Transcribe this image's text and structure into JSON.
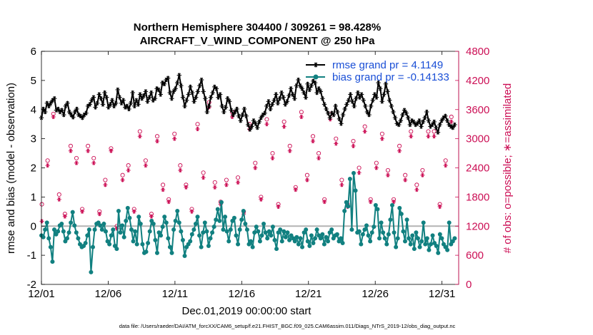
{
  "chart_data": {
    "type": "line",
    "title_line1": "Northern Hemisphere 304400 / 309261 = 98.428%",
    "title_line2": "AIRCRAFT_V_WIND_COMPONENT @ 250 hPa",
    "xlabel": "Dec.01,2019 00:00:00 start",
    "ylabel_left": "rmse and bias (model - observation)",
    "ylabel_right": "# of obs: o=possible; ∗=assimilated",
    "footnote": "data file: /Users/raeder/DAI/ATM_forcXX/CAM6_setup/f.e21.FHIST_BGC.f09_025.CAM6assim.011/Diags_NTrS_2019-12/obs_diag_output.nc",
    "xlim": [
      1,
      32.25
    ],
    "x_ticks": [
      1,
      6,
      11,
      16,
      21,
      26,
      31
    ],
    "x_tick_labels": [
      "12/01",
      "12/06",
      "12/11",
      "12/16",
      "12/21",
      "12/26",
      "12/31"
    ],
    "ylim_left": [
      -2,
      6
    ],
    "y_ticks_left": [
      "-2",
      "-1",
      "0",
      "1",
      "2",
      "3",
      "4",
      "5",
      "6"
    ],
    "ylim_right": [
      0,
      4800
    ],
    "y_ticks_right": [
      "0",
      "600",
      "1200",
      "1800",
      "2400",
      "3000",
      "3600",
      "4200",
      "4800"
    ],
    "zero_line": 0,
    "colors": {
      "rmse": "#000000",
      "bias": "#118080",
      "obs": "#cc0f55",
      "zero_line": "#b4b4b4",
      "legend_text": "#1a4fd6"
    },
    "series": [
      {
        "name": "rmse",
        "legend": "rmse grand pr = 4.1149",
        "values": [
          3.72,
          4.02,
          3.92,
          4.22,
          4.12,
          4.22,
          4.32,
          4.38,
          3.98,
          4.02,
          3.92,
          3.98,
          3.82,
          4.12,
          4.22,
          3.92,
          3.82,
          3.74,
          3.92,
          4.02,
          3.82,
          3.78,
          3.72,
          3.82,
          3.88,
          4.12,
          4.18,
          4.32,
          4.42,
          4.08,
          4.22,
          4.52,
          4.38,
          4.18,
          4.58,
          4.42,
          4.08,
          4.18,
          4.32,
          4.12,
          4.22,
          4.68,
          4.42,
          4.22,
          4.32,
          4.08,
          4.12,
          4.02,
          4.22,
          4.58,
          4.12,
          4.32,
          4.18,
          4.52,
          4.38,
          4.48,
          4.62,
          4.28,
          4.42,
          4.58,
          4.32,
          4.38,
          4.72,
          4.68,
          4.52,
          4.92,
          4.88,
          5.02,
          5.08,
          4.58,
          4.38,
          4.62,
          4.72,
          4.92,
          5.18,
          4.82,
          4.42,
          4.12,
          4.32,
          4.52,
          4.78,
          4.58,
          4.28,
          4.42,
          4.62,
          4.82,
          5.02,
          4.62,
          4.38,
          3.92,
          4.12,
          4.42,
          4.58,
          4.78,
          4.72,
          4.42,
          4.52,
          4.12,
          3.92,
          4.08,
          4.38,
          4.28,
          3.98,
          3.82,
          3.92,
          4.02,
          3.78,
          3.62,
          3.82,
          4.02,
          3.78,
          3.48,
          3.32,
          3.42,
          3.62,
          3.52,
          3.38,
          3.58,
          3.72,
          3.82,
          3.88,
          4.12,
          4.28,
          4.02,
          4.18,
          4.32,
          4.52,
          4.22,
          4.38,
          4.58,
          4.42,
          4.18,
          4.28,
          4.48,
          4.72,
          4.52,
          4.38,
          4.82,
          5.02,
          4.82,
          4.72,
          4.58,
          4.42,
          4.88,
          4.68,
          4.82,
          4.98,
          4.92,
          4.58,
          4.72,
          4.62,
          4.38,
          4.18,
          4.02,
          3.88,
          3.72,
          3.88,
          3.82,
          4.12,
          3.92,
          3.68,
          3.52,
          3.82,
          4.02,
          4.18,
          4.32,
          4.52,
          4.28,
          4.12,
          4.38,
          4.58,
          4.42,
          4.52,
          4.32,
          4.12,
          3.92,
          3.82,
          4.12,
          4.32,
          4.52,
          4.42,
          4.92,
          4.72,
          4.28,
          4.52,
          4.88,
          4.62,
          4.32,
          4.12,
          3.92,
          3.72,
          3.52,
          3.48,
          3.62,
          3.82,
          3.98,
          3.88,
          3.72,
          3.48,
          3.62,
          3.58,
          3.48,
          3.52,
          3.62,
          3.42,
          3.58,
          3.72,
          3.92,
          3.62,
          3.42,
          3.48,
          3.58,
          3.38,
          3.22,
          3.48,
          3.62,
          3.72,
          3.78,
          3.62,
          3.48,
          3.42,
          3.38,
          3.48
        ]
      },
      {
        "name": "bias",
        "legend": "bias grand pr = -0.14133",
        "values": [
          -0.32,
          -0.38,
          -0.12,
          0.12,
          -0.42,
          -0.72,
          -1.22,
          -0.12,
          -0.28,
          -0.18,
          0.02,
          0.08,
          -0.18,
          -0.52,
          -0.42,
          -0.22,
          0.12,
          0.48,
          0.02,
          -0.22,
          -0.42,
          -0.62,
          -0.72,
          -0.68,
          -0.58,
          -0.32,
          -0.12,
          -1.58,
          -0.72,
          -0.12,
          0.08,
          0.12,
          0.02,
          -0.12,
          0.08,
          -0.18,
          -0.52,
          -0.62,
          -0.32,
          -0.12,
          -0.68,
          -0.78,
          0.52,
          -0.22,
          0.02,
          -0.38,
          0.18,
          0.62,
          0.28,
          -0.12,
          -0.52,
          -0.18,
          -0.62,
          0.32,
          0.08,
          -0.62,
          -0.92,
          -0.88,
          -0.58,
          -0.18,
          0.18,
          0.08,
          -0.48,
          -0.92,
          -0.22,
          -0.32,
          -0.02,
          0.32,
          0.12,
          -0.42,
          -0.72,
          -0.92,
          -0.12,
          0.18,
          0.52,
          0.12,
          -0.18,
          -0.48,
          -1.02,
          -0.72,
          -0.62,
          -0.52,
          -0.28,
          -0.12,
          0.08,
          0.32,
          -0.32,
          -0.72,
          -0.22,
          0.12,
          -0.18,
          -0.68,
          -0.42,
          -0.22,
          -0.02,
          0.22,
          0.58,
          0.18,
          0.82,
          -0.12,
          0.32,
          -0.18,
          -0.52,
          -0.12,
          0.18,
          0.28,
          -0.32,
          -0.62,
          -0.12,
          0.22,
          0.52,
          0.08,
          -0.12,
          -0.62,
          -0.52,
          -0.72,
          -0.22,
          -0.02,
          -0.18,
          -0.52,
          -0.32,
          0.08,
          -0.22,
          -0.42,
          -0.18,
          -0.32,
          -0.02,
          -0.48,
          -0.78,
          -0.22,
          -0.12,
          -0.52,
          -0.18,
          -0.38,
          -0.22,
          -0.48,
          -0.32,
          -0.42,
          -0.52,
          -0.38,
          -0.62,
          -0.42,
          -0.72,
          -0.22,
          -0.12,
          -0.52,
          -0.68,
          -0.32,
          -0.58,
          -0.42,
          -0.12,
          -0.32,
          -0.42,
          -0.28,
          -0.62,
          -0.38,
          -0.52,
          -0.22,
          -0.12,
          -0.42,
          -0.32,
          -0.28,
          -0.52,
          -0.42,
          -0.58,
          0.52,
          0.82,
          0.68,
          1.62,
          -0.12,
          1.82,
          1.22,
          -0.22,
          -0.18,
          -0.62,
          -0.28,
          -0.12,
          0.02,
          -0.32,
          -0.52,
          -0.22,
          -0.02,
          0.72,
          0.58,
          -0.42,
          0.12,
          -0.22,
          -0.42,
          -0.62,
          -0.28,
          0.22,
          0.72,
          -0.22,
          -0.72,
          -0.42,
          0.62,
          0.42,
          -0.18,
          -0.52,
          0.22,
          -0.42,
          -0.62,
          -0.32,
          -0.78,
          -0.22,
          -0.42,
          -0.72,
          -0.52,
          0.12,
          -0.62,
          -0.42,
          -0.82,
          -0.62,
          -0.32,
          -0.58,
          -0.68,
          -0.92,
          -0.28,
          -0.42,
          -0.62,
          -0.72,
          -0.82,
          0.12,
          -0.62,
          -0.52,
          -0.42
        ]
      },
      {
        "name": "obs_possible",
        "marker": "o",
        "values": [
          1650,
          2550,
          3510,
          1850,
          1450,
          2850,
          2600,
          1550,
          2850,
          2600,
          1500,
          2150,
          2800,
          1200,
          2250,
          2450,
          1550,
          3150,
          2550,
          1450,
          3050,
          2050,
          1750,
          3100,
          2450,
          2050,
          1550,
          3300,
          2300,
          3750,
          2100,
          1700,
          2150,
          3550,
          2200,
          1500,
          3300,
          2500,
          1800,
          3400,
          2700,
          1650,
          3350,
          2850,
          2000,
          3550,
          2250,
          3050,
          2700,
          1750,
          3500,
          3000,
          2150,
          1650,
          2950,
          2400,
          3250,
          1750,
          2500,
          3100,
          2350,
          1750,
          2850,
          2250,
          3150,
          2050,
          2350,
          3150,
          3150,
          1650,
          2550,
          3450
        ]
      },
      {
        "name": "obs_assimilated",
        "marker": "*",
        "values": [
          1300,
          2450,
          3450,
          1750,
          1400,
          2750,
          2500,
          1500,
          2750,
          2500,
          1450,
          2050,
          2750,
          1150,
          2150,
          2350,
          1500,
          3050,
          2450,
          1400,
          2950,
          1950,
          1700,
          3000,
          2350,
          2000,
          1500,
          3200,
          2200,
          3650,
          2000,
          1650,
          2050,
          3450,
          2100,
          1450,
          3200,
          2400,
          1750,
          3300,
          2600,
          1600,
          3250,
          2750,
          1950,
          3450,
          2150,
          2950,
          2600,
          1700,
          3400,
          2900,
          2050,
          1600,
          2850,
          2300,
          3150,
          1700,
          2400,
          3000,
          2250,
          1700,
          2750,
          2150,
          3050,
          1950,
          2250,
          3050,
          3050,
          1600,
          2450,
          3350
        ]
      }
    ]
  }
}
